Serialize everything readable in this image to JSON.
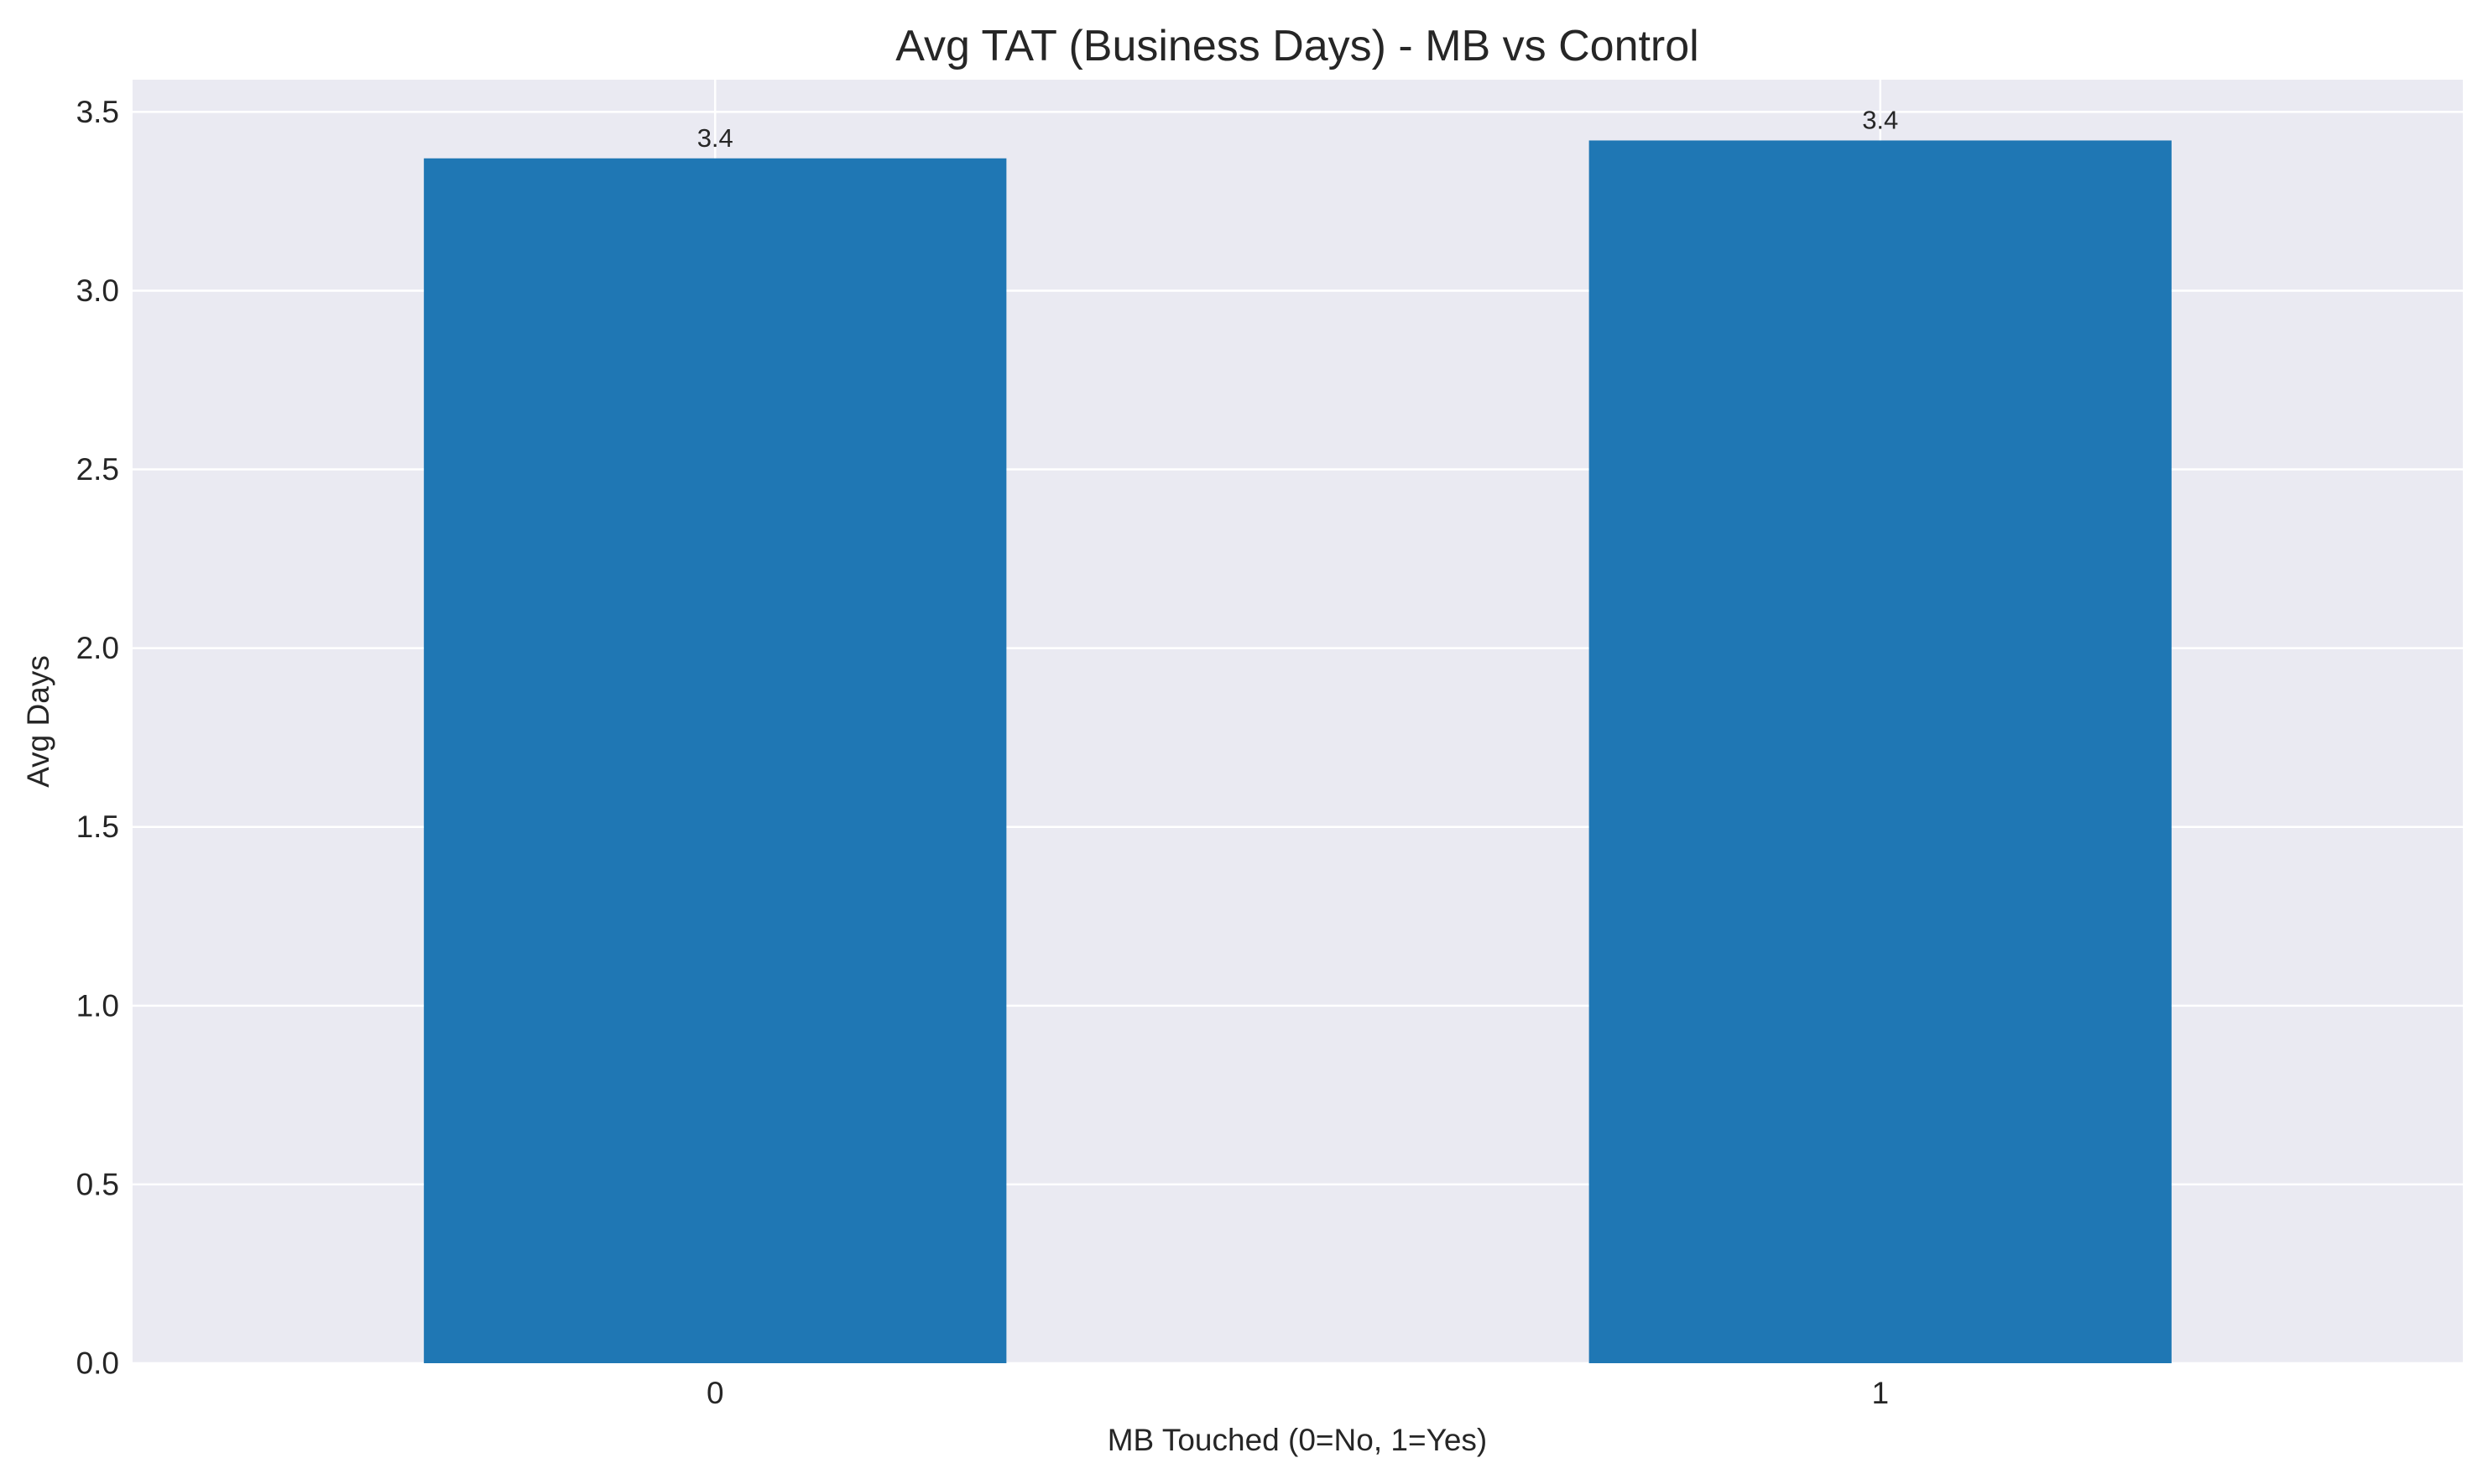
{
  "chart_data": {
    "type": "bar",
    "title": "Avg TAT (Business Days) - MB vs Control",
    "xlabel": "MB Touched (0=No, 1=Yes)",
    "ylabel": "Avg Days",
    "categories": [
      "0",
      "1"
    ],
    "values": [
      3.37,
      3.42
    ],
    "data_labels": [
      "3.4",
      "3.4"
    ],
    "ylim": [
      0,
      3.59
    ],
    "yticks": [
      0.0,
      0.5,
      1.0,
      1.5,
      2.0,
      2.5,
      3.0,
      3.5
    ],
    "ytick_labels": [
      "0.0",
      "0.5",
      "1.0",
      "1.5",
      "2.0",
      "2.5",
      "3.0",
      "3.5"
    ],
    "grid": true,
    "legend": "none",
    "colors": {
      "bar": "#1f77b4",
      "plot_background": "#eaeaf2",
      "grid": "#ffffff",
      "text": "#262626"
    }
  }
}
